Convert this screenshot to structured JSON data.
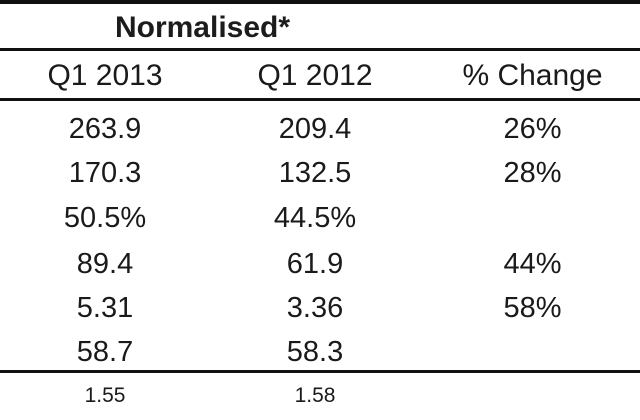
{
  "table": {
    "title": "Normalised*",
    "headers": [
      "Q1 2013",
      "Q1 2012",
      "% Change"
    ],
    "rows": [
      [
        "263.9",
        "209.4",
        "26%"
      ],
      [
        "170.3",
        "132.5",
        "28%"
      ],
      [
        "50.5%",
        "44.5%",
        ""
      ],
      [
        "89.4",
        "61.9",
        "44%"
      ],
      [
        "5.31",
        "3.36",
        "58%"
      ],
      [
        "58.7",
        "58.3",
        ""
      ]
    ],
    "footer": [
      "1.55",
      "1.58"
    ]
  }
}
